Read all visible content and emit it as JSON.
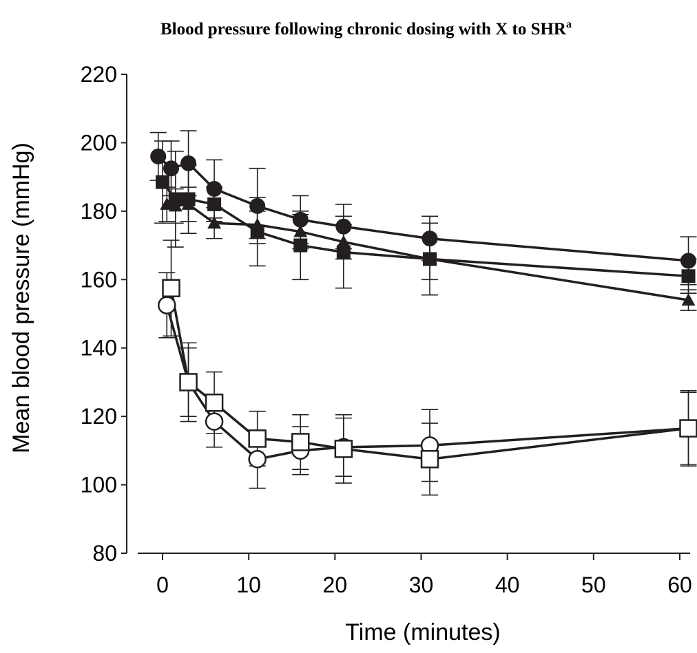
{
  "chart_data": {
    "type": "line",
    "title": "Blood pressure following chronic dosing with X to SHR",
    "title_superscript": "a",
    "xlabel": "Time (minutes)",
    "ylabel": "Mean blood pressure (mmHg)",
    "xlim": [
      -2,
      62
    ],
    "ylim": [
      80,
      220
    ],
    "x_ticks": [
      0,
      10,
      20,
      30,
      40,
      50,
      60
    ],
    "y_ticks": [
      80,
      100,
      120,
      140,
      160,
      180,
      200,
      220
    ],
    "grid": false,
    "legend": "none",
    "series": [
      {
        "marker": "filled-circle",
        "x": [
          -0.5,
          1,
          3,
          6,
          11,
          16,
          21,
          31,
          61
        ],
        "y": [
          196,
          192.5,
          194,
          186.5,
          181.5,
          177.5,
          175.5,
          172,
          165.5
        ],
        "error": [
          7,
          8,
          9.5,
          8.5,
          11,
          7,
          6.5,
          6.5,
          7
        ]
      },
      {
        "marker": "filled-square",
        "x": [
          0,
          1.5,
          3,
          6,
          11,
          16,
          21,
          31,
          61
        ],
        "y": [
          188.5,
          183.5,
          183.5,
          182,
          174,
          170,
          168,
          166,
          161
        ],
        "error": [
          12,
          14,
          10,
          5,
          10,
          10,
          10.5,
          10.5,
          5
        ]
      },
      {
        "marker": "filled-triangle",
        "x": [
          0.5,
          1.5,
          3,
          6,
          11,
          16,
          21,
          31,
          61
        ],
        "y": [
          182,
          181.5,
          182,
          176.5,
          176,
          174,
          171,
          166,
          154
        ],
        "error": [
          5,
          5,
          5,
          4.5,
          4,
          5,
          5,
          6,
          3
        ]
      },
      {
        "marker": "open-circle",
        "x": [
          0.5,
          3,
          6,
          11,
          16,
          21,
          31,
          61
        ],
        "y": [
          152.5,
          130,
          118.5,
          107.5,
          110,
          111,
          111.5,
          116.5
        ],
        "error": [
          9.5,
          10,
          7.5,
          8.5,
          7,
          8.5,
          10.5,
          10.5
        ]
      },
      {
        "marker": "open-square",
        "x": [
          1,
          3,
          6,
          11,
          16,
          21,
          31,
          61
        ],
        "y": [
          157.5,
          130,
          124,
          113.5,
          112.5,
          110.5,
          107.5,
          116.5
        ],
        "error": [
          14,
          11.5,
          9,
          8,
          8,
          10,
          10.5,
          11
        ]
      }
    ],
    "colors": {
      "line": "#231f20",
      "background": "#ffffff"
    }
  }
}
